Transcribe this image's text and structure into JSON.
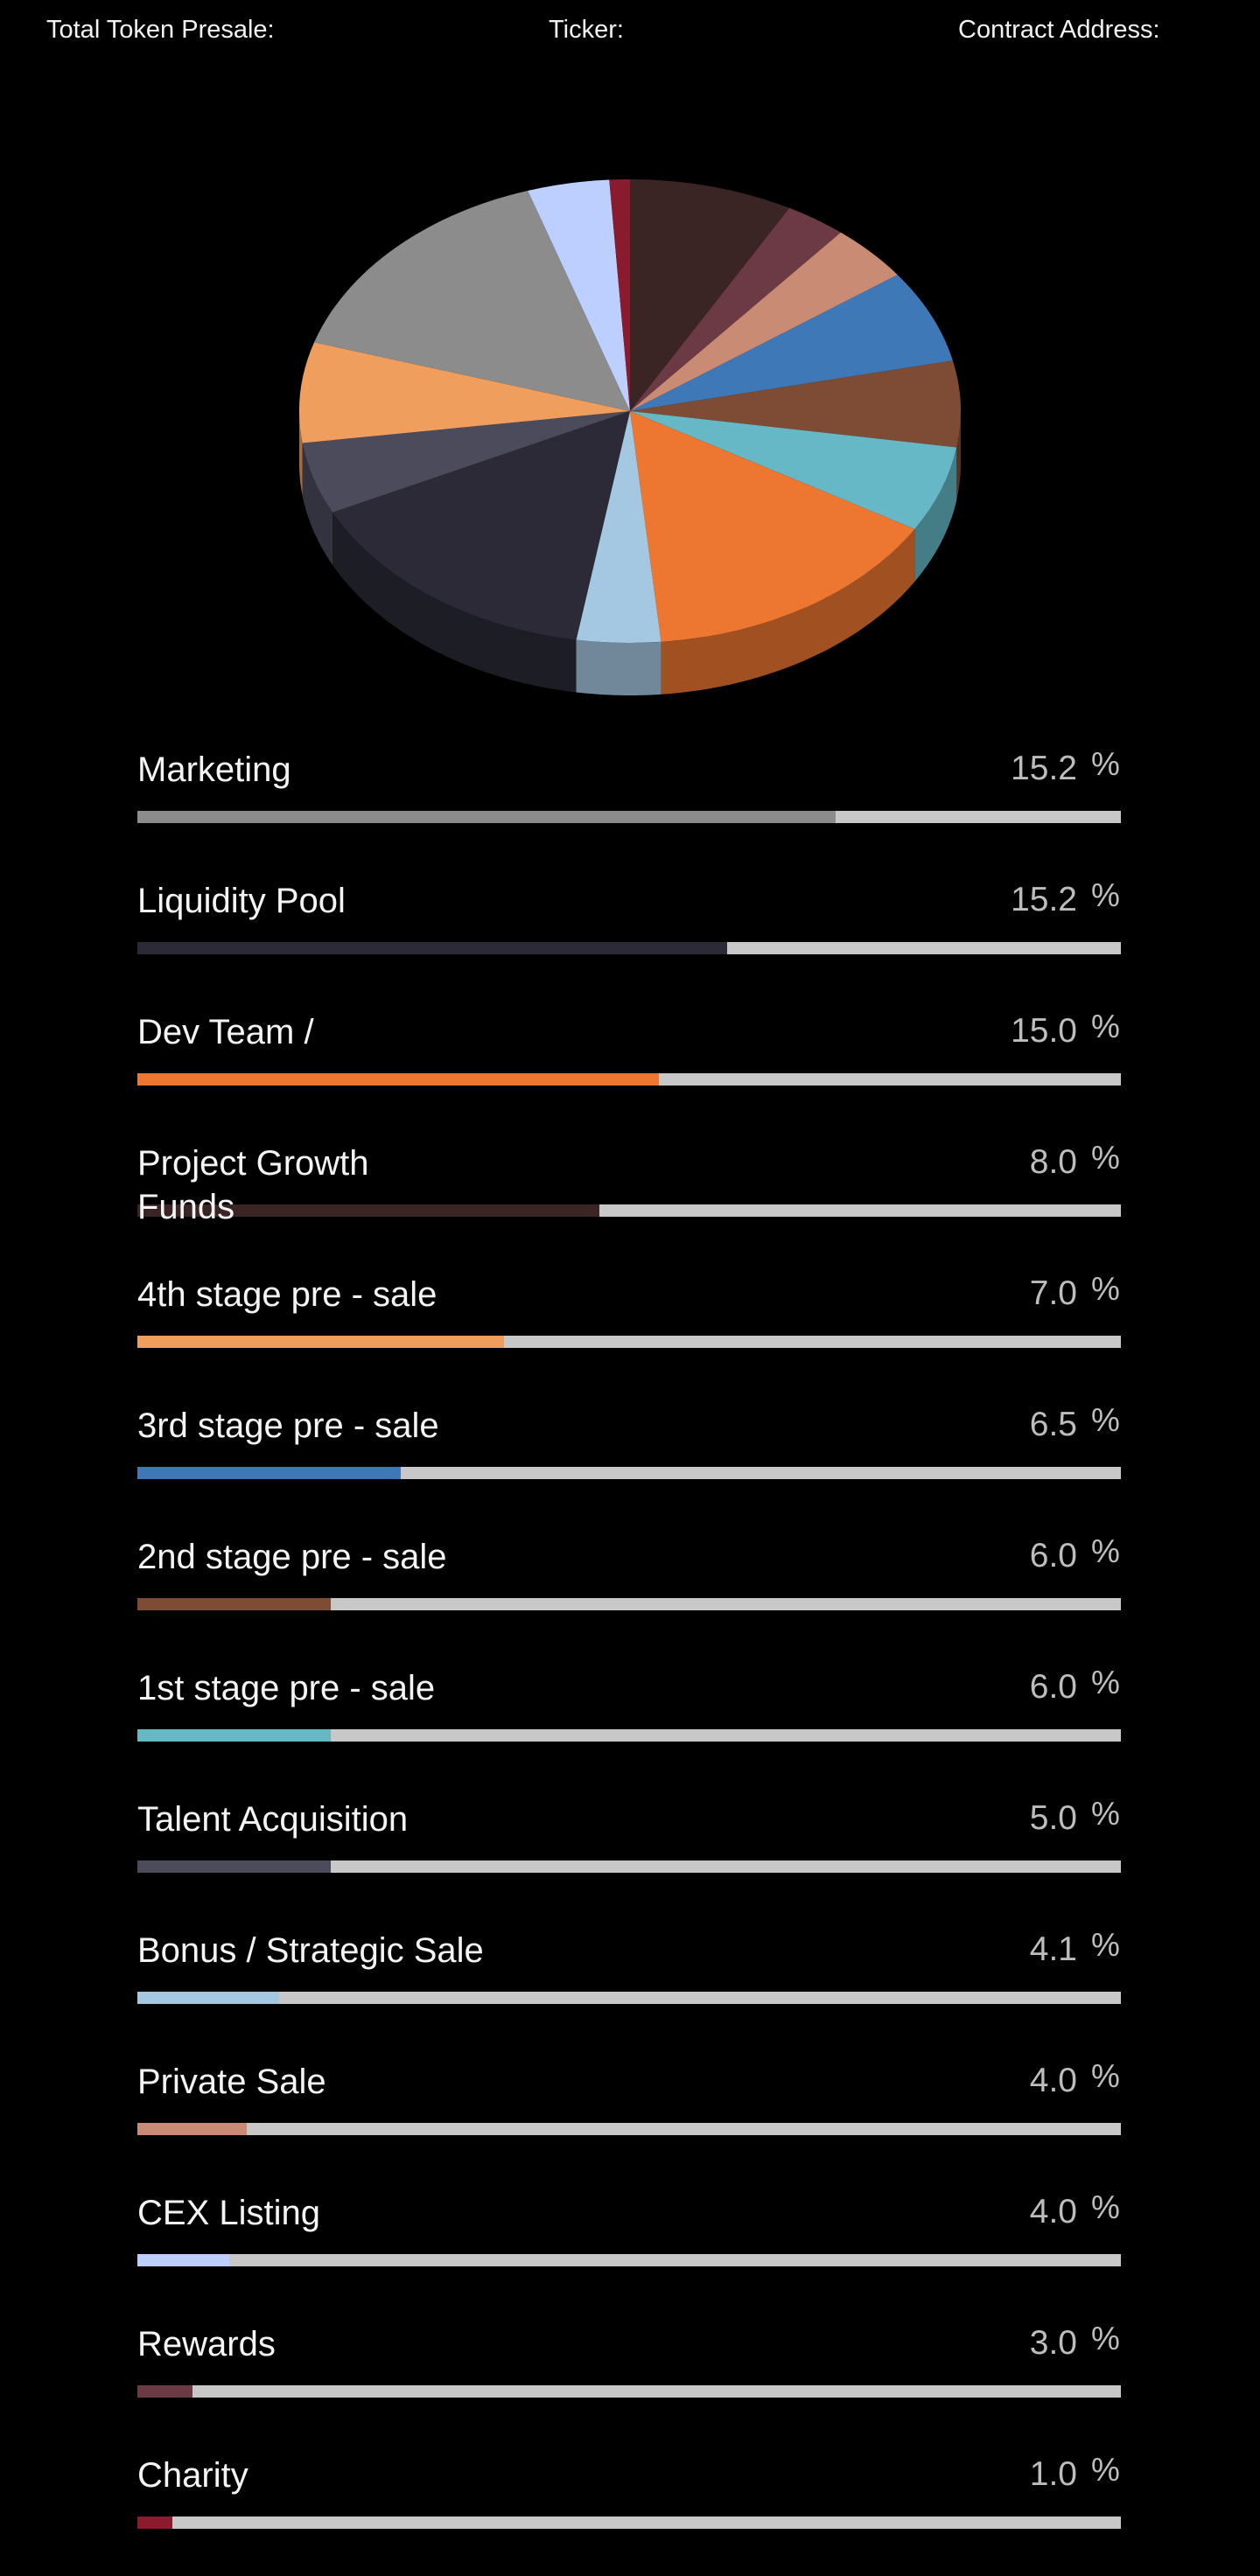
{
  "header": {
    "total_presale_label": "Total Token Presale:",
    "ticker_label": "Ticker:",
    "contract_label": "Contract Address:"
  },
  "chart_data": {
    "type": "pie",
    "title": "",
    "slices": [
      {
        "label": "Project Growth Funds",
        "value": 8.0,
        "color": "#3a2424"
      },
      {
        "label": "Rewards",
        "value": 3.0,
        "color": "#6b3a44"
      },
      {
        "label": "Private Sale",
        "value": 4.0,
        "color": "#c98b73"
      },
      {
        "label": "3rd stage pre - sale",
        "value": 6.5,
        "color": "#3e78b6"
      },
      {
        "label": "2nd stage pre - sale",
        "value": 6.0,
        "color": "#7e4c35"
      },
      {
        "label": "1st stage pre - sale",
        "value": 6.0,
        "color": "#66b8c6"
      },
      {
        "label": "Dev Team /",
        "value": 15.0,
        "color": "#ed7631"
      },
      {
        "label": "Bonus / Strategic Sale",
        "value": 4.1,
        "color": "#a4c8e2"
      },
      {
        "label": "Liquidity Pool",
        "value": 15.2,
        "color": "#2b2a36"
      },
      {
        "label": "Talent Acquisition",
        "value": 5.0,
        "color": "#4b4b5c"
      },
      {
        "label": "4th stage pre - sale",
        "value": 7.0,
        "color": "#f09e5d"
      },
      {
        "label": "Marketing",
        "value": 15.2,
        "color": "#8c8c8c"
      },
      {
        "label": "CEX Listing",
        "value": 4.0,
        "color": "#bccfff"
      },
      {
        "label": "Charity",
        "value": 1.0,
        "color": "#8a1a2e"
      }
    ]
  },
  "allocations": [
    {
      "label": "Marketing",
      "value": "15.2",
      "unit": "%",
      "fill": 0.71,
      "color": "#8c8c8c"
    },
    {
      "label": "Liquidity Pool",
      "value": "15.2",
      "unit": "%",
      "fill": 0.6,
      "color": "#2b2a36"
    },
    {
      "label": "Dev Team /",
      "value": "15.0",
      "unit": "%",
      "fill": 0.53,
      "color": "#ed7631"
    },
    {
      "label": "Project Growth\nFunds",
      "value": "8.0",
      "unit": "%",
      "fill": 0.47,
      "color": "#3a2424"
    },
    {
      "label": "4th stage pre - sale",
      "value": "7.0",
      "unit": "%",
      "fill": 0.373,
      "color": "#f09e5d"
    },
    {
      "label": "3rd stage pre - sale",
      "value": "6.5",
      "unit": "%",
      "fill": 0.268,
      "color": "#3e78b6"
    },
    {
      "label": "2nd stage pre - sale",
      "value": "6.0",
      "unit": "%",
      "fill": 0.197,
      "color": "#7e4c35"
    },
    {
      "label": "1st stage pre - sale",
      "value": "6.0",
      "unit": "%",
      "fill": 0.197,
      "color": "#66b8c6"
    },
    {
      "label": "Talent Acquisition",
      "value": "5.0",
      "unit": "%",
      "fill": 0.197,
      "color": "#4b4b5c"
    },
    {
      "label": "Bonus / Strategic Sale",
      "value": "4.1",
      "unit": "%",
      "fill": 0.144,
      "color": "#a4c8e2"
    },
    {
      "label": "Private Sale",
      "value": "4.0",
      "unit": "%",
      "fill": 0.111,
      "color": "#c98b73"
    },
    {
      "label": "CEX Listing",
      "value": "4.0",
      "unit": "%",
      "fill": 0.093,
      "color": "#bccfff"
    },
    {
      "label": "Rewards",
      "value": "3.0",
      "unit": "%",
      "fill": 0.056,
      "color": "#6b3a44"
    },
    {
      "label": "Charity",
      "value": "1.0",
      "unit": "%",
      "fill": 0.036,
      "color": "#8a1a2e"
    }
  ]
}
